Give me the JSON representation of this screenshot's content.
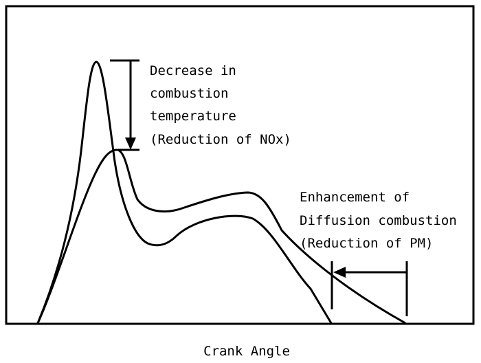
{
  "annotations": {
    "temperature": {
      "lines": [
        "Decrease in",
        "combustion",
        "temperature",
        "(Reduction of NOx)"
      ]
    },
    "diffusion": {
      "lines": [
        "Enhancement of",
        "Diffusion combustion",
        "(Reduction of PM)"
      ]
    }
  },
  "axis": {
    "xlabel": "Crank Angle"
  },
  "colors": {
    "stroke": "#000000",
    "background": "#ffffff"
  }
}
